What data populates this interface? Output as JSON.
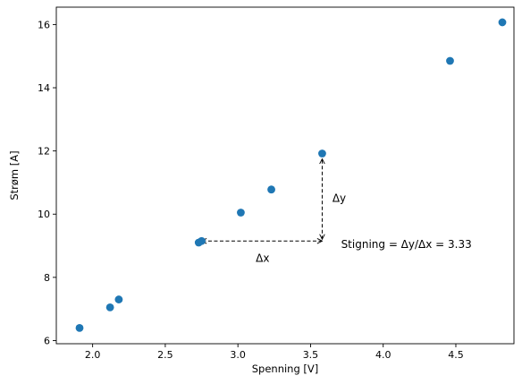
{
  "chart_data": {
    "type": "scatter",
    "xlabel": "Spenning [V]",
    "ylabel": "Strøm [A]",
    "xlim": [
      1.75,
      4.9
    ],
    "ylim": [
      5.9,
      16.55
    ],
    "xticks": [
      2.0,
      2.5,
      3.0,
      3.5,
      4.0,
      4.5
    ],
    "xtick_labels": [
      "2.0",
      "2.5",
      "3.0",
      "3.5",
      "4.0",
      "4.5"
    ],
    "yticks": [
      6,
      8,
      10,
      12,
      14,
      16
    ],
    "ytick_labels": [
      "6",
      "8",
      "10",
      "12",
      "14",
      "16"
    ],
    "grid": false,
    "marker_color": "#1f77b4",
    "points": [
      {
        "x": 1.91,
        "y": 6.4
      },
      {
        "x": 2.12,
        "y": 7.05
      },
      {
        "x": 2.18,
        "y": 7.3
      },
      {
        "x": 2.73,
        "y": 9.1
      },
      {
        "x": 2.75,
        "y": 9.15
      },
      {
        "x": 3.02,
        "y": 10.05
      },
      {
        "x": 3.23,
        "y": 10.78
      },
      {
        "x": 3.58,
        "y": 11.92
      },
      {
        "x": 4.46,
        "y": 14.85
      },
      {
        "x": 4.82,
        "y": 16.07
      }
    ],
    "annotations": {
      "dx_start": {
        "x": 2.75,
        "y": 9.15
      },
      "corner": {
        "x": 3.58,
        "y": 9.15
      },
      "dy_end": {
        "x": 3.58,
        "y": 11.92
      },
      "dx_label": {
        "text": "Δx",
        "x": 3.17,
        "y": 8.6
      },
      "dy_label": {
        "text": "Δy",
        "x": 3.65,
        "y": 10.5
      },
      "slope_label": {
        "text": "Stigning = Δy/Δx = 3.33",
        "x": 3.71,
        "y": 9.05
      }
    }
  }
}
